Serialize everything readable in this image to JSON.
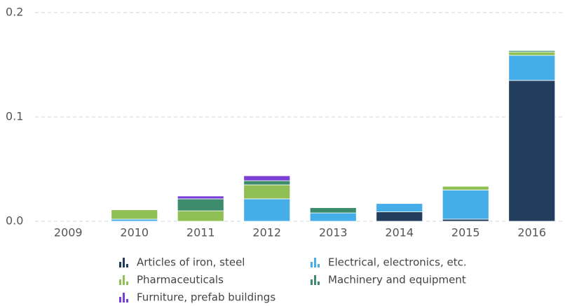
{
  "chart_data": {
    "type": "stacked_bar",
    "categories": [
      "2009",
      "2010",
      "2011",
      "2012",
      "2013",
      "2014",
      "2015",
      "2016"
    ],
    "series": [
      {
        "name": "Articles of iron, steel",
        "color": "#223d5e",
        "values": [
          0,
          0,
          0,
          0,
          0,
          0.009,
          0.002,
          0.135
        ]
      },
      {
        "name": "Electrical, electronics, etc.",
        "color": "#45aee8",
        "values": [
          0,
          0.002,
          0,
          0.0215,
          0.008,
          0.008,
          0.028,
          0.024
        ]
      },
      {
        "name": "Pharmaceuticals",
        "color": "#8fbf55",
        "values": [
          0,
          0.009,
          0.01,
          0.0134,
          0,
          0,
          0.0035,
          0.0033
        ]
      },
      {
        "name": "Machinery and equipment",
        "color": "#3d8c6e",
        "values": [
          0,
          0,
          0.0115,
          0.004,
          0.005,
          0,
          0,
          0.0013
        ]
      },
      {
        "name": "Furniture, prefab buildings",
        "color": "#7b3fd6",
        "values": [
          0,
          0,
          0.0027,
          0.0047,
          0,
          0,
          0,
          0
        ]
      }
    ],
    "ylim": [
      0,
      0.2
    ],
    "yticks": [
      {
        "value": 0,
        "label": "0.0"
      },
      0.1,
      0.2
    ],
    "grid": true
  }
}
